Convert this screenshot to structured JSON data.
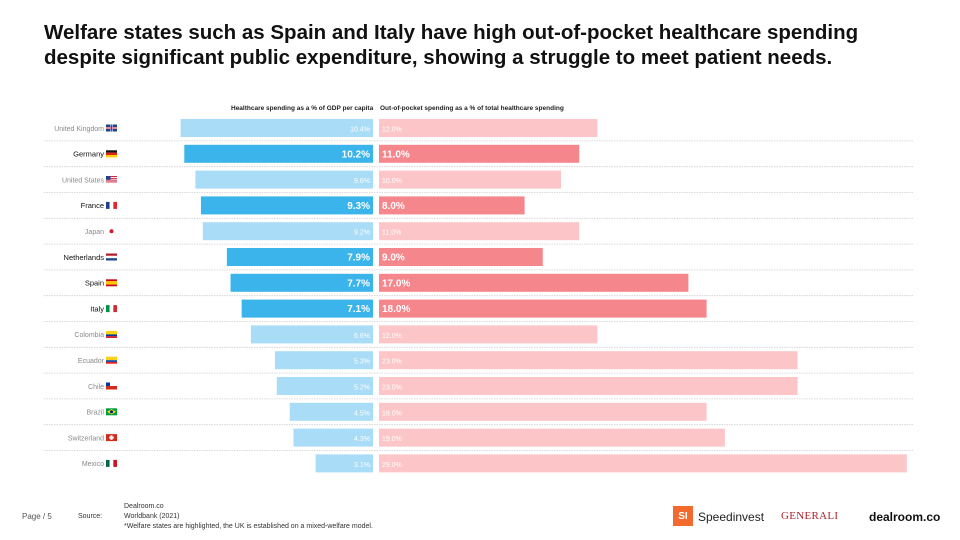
{
  "title": "Welfare states such as Spain and Italy have high out-of-pocket healthcare spending despite significant public expenditure, showing a struggle to meet patient needs.",
  "footer": {
    "page_label": "Page / 5",
    "sources_label": "Source:",
    "source_1": "Dealroom.co",
    "source_2": "Worldbank (2021)",
    "note": "*Welfare states are highlighted, the UK is established on a mixed-welfare model."
  },
  "logos": {
    "si_mark": "SI",
    "speedinvest": "Speedinvest",
    "generali": "GENERALI",
    "dealroom": "dealroom.co"
  },
  "colors": {
    "left_highlight": "#3ab4ea",
    "left_muted": "#a9dcf6",
    "right_highlight": "#f5868c",
    "right_muted": "#fcc5c7",
    "separator": "#cfcfcf"
  },
  "chart_data": {
    "type": "bar",
    "layout": "diverging horizontal bars",
    "categories": [
      "United Kingdom",
      "Germany",
      "United States",
      "France",
      "Japan",
      "Netherlands",
      "Spain",
      "Italy",
      "Colombia",
      "Ecuador",
      "Chile",
      "Brazil",
      "Switzerland",
      "Mexico"
    ],
    "highlighted": [
      false,
      true,
      false,
      true,
      false,
      true,
      true,
      true,
      false,
      false,
      false,
      false,
      false,
      false
    ],
    "flags": [
      "gb",
      "de",
      "us",
      "fr",
      "jp",
      "nl",
      "es",
      "it",
      "co",
      "ec",
      "cl",
      "br",
      "ch",
      "mx"
    ],
    "series": [
      {
        "name": "Healthcare spending as a % of GDP per capita",
        "values": [
          10.4,
          10.2,
          9.6,
          9.3,
          9.2,
          7.9,
          7.7,
          7.1,
          6.6,
          5.3,
          5.2,
          4.5,
          4.3,
          3.1
        ],
        "labels": [
          "10.4%",
          "10.2%",
          "9.6%",
          "9.3%",
          "9.2%",
          "7.9%",
          "7.7%",
          "7.1%",
          "6.6%",
          "5.3%",
          "5.2%",
          "4.5%",
          "4.3%",
          "3.1%"
        ]
      },
      {
        "name": "Out-of-pocket spending as a % of total healthcare spending",
        "values": [
          12.0,
          11.0,
          10.0,
          8.0,
          11.0,
          9.0,
          17.0,
          18.0,
          12.0,
          23.0,
          23.0,
          18.0,
          19.0,
          29.0
        ],
        "labels": [
          "12.0%",
          "11.0%",
          "10.0%",
          "8.0%",
          "11.0%",
          "9.0%",
          "17.0%",
          "18.0%",
          "12.0%",
          "23.0%",
          "23.0%",
          "18.0%",
          "19.0%",
          "29.0%"
        ]
      }
    ]
  }
}
